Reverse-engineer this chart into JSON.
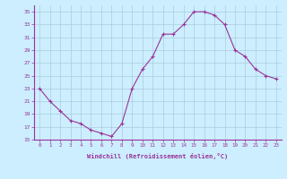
{
  "x": [
    0,
    1,
    2,
    3,
    4,
    5,
    6,
    7,
    8,
    9,
    10,
    11,
    12,
    13,
    14,
    15,
    16,
    17,
    18,
    19,
    20,
    21,
    22,
    23
  ],
  "y": [
    23,
    21,
    19.5,
    18,
    17.5,
    16.5,
    16,
    15.5,
    17.5,
    23,
    26,
    28,
    31.5,
    31.5,
    33,
    35,
    35,
    34.5,
    33,
    29,
    28,
    26,
    25,
    24.5
  ],
  "line_color": "#993399",
  "marker": "+",
  "bg_color": "#cceeff",
  "grid_color": "#aaccdd",
  "xlabel": "Windchill (Refroidissement éolien,°C)",
  "xlabel_color": "#993399",
  "tick_color": "#993399",
  "ylim": [
    15,
    36
  ],
  "yticks": [
    15,
    17,
    19,
    21,
    23,
    25,
    27,
    29,
    31,
    33,
    35
  ],
  "xlim": [
    -0.5,
    23.5
  ],
  "xticks": [
    0,
    1,
    2,
    3,
    4,
    5,
    6,
    7,
    8,
    9,
    10,
    11,
    12,
    13,
    14,
    15,
    16,
    17,
    18,
    19,
    20,
    21,
    22,
    23
  ]
}
